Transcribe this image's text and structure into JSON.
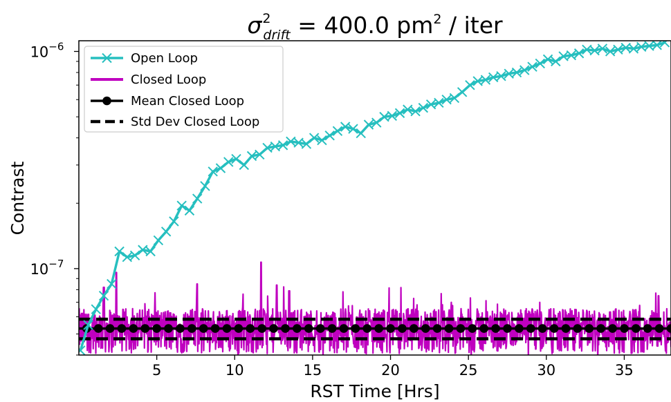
{
  "chart_data": {
    "type": "line",
    "title": {
      "symbol": "σ",
      "sup": "2",
      "sub": "drift",
      "rest": " = 400.0 pm",
      "unit_sup": "2",
      "tail": " / iter"
    },
    "xlabel": "RST Time [Hrs]",
    "ylabel": "Contrast",
    "xscale": "linear",
    "yscale": "log",
    "xlim": [
      0,
      38
    ],
    "ylim": [
      4e-08,
      1.12e-06
    ],
    "xticks": [
      5,
      10,
      15,
      20,
      25,
      30,
      35
    ],
    "xtick_labels": [
      "5",
      "10",
      "15",
      "20",
      "25",
      "30",
      "35"
    ],
    "yticks": [
      1e-07,
      1e-06
    ],
    "ytick_labels": [
      {
        "base": "10",
        "exp": "−7"
      },
      {
        "base": "10",
        "exp": "−6"
      }
    ],
    "grid": false,
    "legend_position": "top-left",
    "colors": {
      "open_loop": "#26bfbf",
      "closed_loop": "#bf00bf",
      "mean": "#000000",
      "std": "#000000"
    },
    "series": [
      {
        "name": "Open Loop",
        "style": "line-x-marker",
        "x": [
          0.1,
          0.6,
          1.1,
          1.6,
          2.1,
          2.6,
          3.1,
          3.6,
          4.1,
          4.6,
          5.1,
          5.6,
          6.1,
          6.6,
          7.1,
          7.6,
          8.1,
          8.6,
          9.1,
          9.6,
          10.1,
          10.6,
          11.1,
          11.6,
          12.1,
          12.6,
          13.1,
          13.6,
          14.1,
          14.6,
          15.1,
          15.6,
          16.1,
          16.6,
          17.1,
          17.6,
          18.1,
          18.6,
          19.1,
          19.6,
          20.1,
          20.6,
          21.1,
          21.6,
          22.1,
          22.6,
          23.1,
          23.6,
          24.1,
          24.6,
          25.1,
          25.6,
          26.1,
          26.6,
          27.1,
          27.6,
          28.1,
          28.6,
          29.1,
          29.6,
          30.1,
          30.6,
          31.1,
          31.6,
          32.1,
          32.6,
          33.1,
          33.6,
          34.1,
          34.6,
          35.1,
          35.6,
          36.1,
          36.6,
          37.1,
          37.6
        ],
        "y": [
          4.2e-08,
          5.5e-08,
          6.5e-08,
          7.5e-08,
          8.5e-08,
          1.2e-07,
          1.13e-07,
          1.15e-07,
          1.22e-07,
          1.2e-07,
          1.35e-07,
          1.48e-07,
          1.65e-07,
          1.95e-07,
          1.85e-07,
          2.1e-07,
          2.4e-07,
          2.8e-07,
          2.9e-07,
          3.1e-07,
          3.2e-07,
          3e-07,
          3.3e-07,
          3.35e-07,
          3.6e-07,
          3.65e-07,
          3.7e-07,
          3.85e-07,
          3.8e-07,
          3.75e-07,
          4e-07,
          3.9e-07,
          4.1e-07,
          4.3e-07,
          4.5e-07,
          4.4e-07,
          4.2e-07,
          4.6e-07,
          4.7e-07,
          5e-07,
          5.05e-07,
          5.2e-07,
          5.4e-07,
          5.3e-07,
          5.5e-07,
          5.7e-07,
          5.8e-07,
          6e-07,
          6.1e-07,
          6.5e-07,
          7e-07,
          7.3e-07,
          7.4e-07,
          7.6e-07,
          7.7e-07,
          7.9e-07,
          8e-07,
          8.2e-07,
          8.5e-07,
          8.8e-07,
          9.2e-07,
          9e-07,
          9.5e-07,
          9.6e-07,
          9.8e-07,
          1.02e-06,
          1.01e-06,
          1.03e-06,
          1e-06,
          1.02e-06,
          1.04e-06,
          1.03e-06,
          1.05e-06,
          1.06e-06,
          1.07e-06,
          1.1e-06
        ]
      },
      {
        "name": "Closed Loop",
        "style": "line",
        "x_range": [
          0,
          38
        ],
        "baseline": 5.3e-08,
        "spread": 0.13,
        "spikes": [
          {
            "x": 2.4,
            "y": 9.6e-08
          },
          {
            "x": 1.6,
            "y": 8.2e-08
          },
          {
            "x": 7.6,
            "y": 8.5e-08
          },
          {
            "x": 12.7,
            "y": 8.4e-08
          },
          {
            "x": 11.7,
            "y": 1.07e-07
          },
          {
            "x": 13.5,
            "y": 7.9e-08
          },
          {
            "x": 37.2,
            "y": 7.5e-08
          }
        ]
      },
      {
        "name": "Mean Closed Loop",
        "style": "line-circle-marker",
        "x_start": 0.5,
        "x_step": 0.75,
        "y": 5.3e-08
      },
      {
        "name": "Std Dev Closed Loop",
        "style": "dashed",
        "y_upper": 5.85e-08,
        "y_lower": 4.75e-08
      }
    ]
  }
}
